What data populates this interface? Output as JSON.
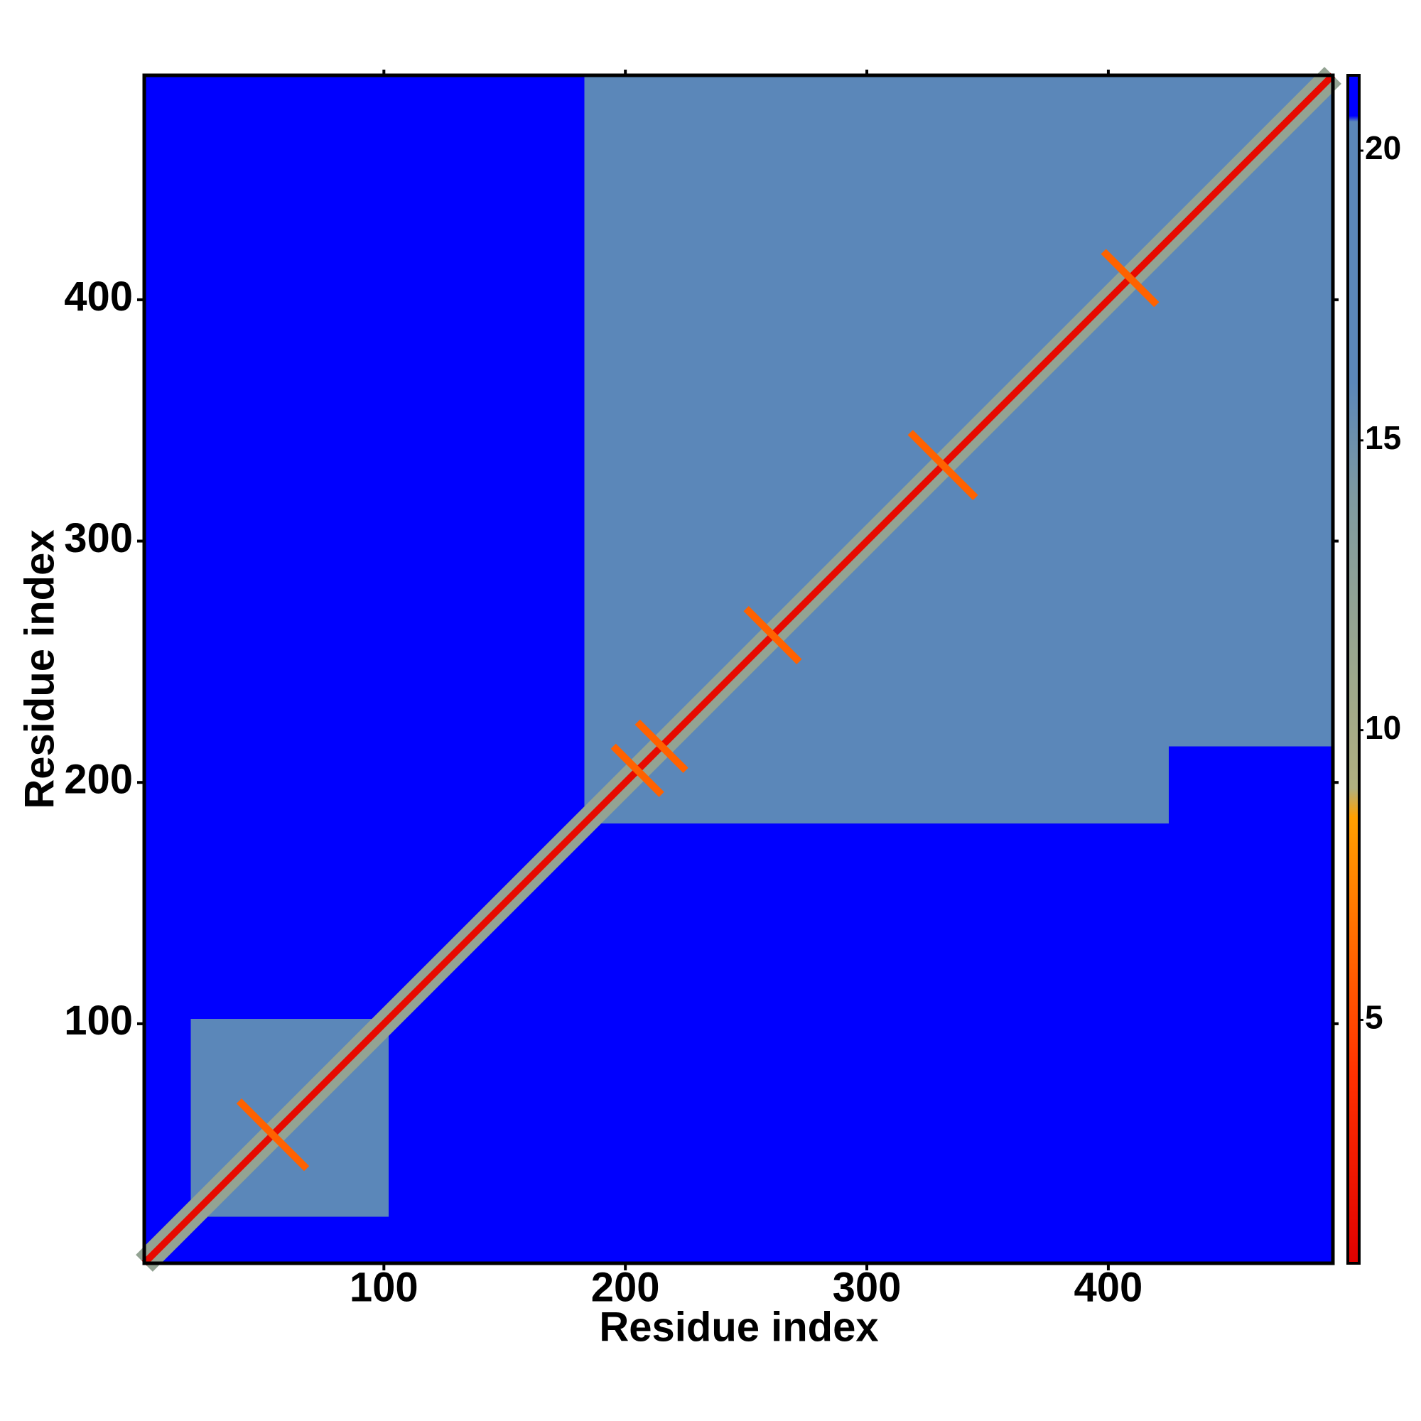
{
  "chart_data": {
    "type": "heatmap",
    "xlabel": "Residue index",
    "ylabel": "Residue index",
    "xlim": [
      0.75,
      493
    ],
    "ylim": [
      0.75,
      493
    ],
    "xticks": [
      100,
      200,
      300,
      400
    ],
    "yticks": [
      100,
      200,
      300,
      400
    ],
    "colorbar": {
      "clim": [
        0.8,
        21.3
      ],
      "ticks": [
        5,
        10,
        15,
        20
      ],
      "colormap": [
        {
          "value": 0.8,
          "color": "#e00000"
        },
        {
          "value": 4,
          "color": "#ff3000"
        },
        {
          "value": 8.5,
          "color": "#ffa000"
        },
        {
          "value": 9,
          "color": "#b0b080"
        },
        {
          "value": 14,
          "color": "#7f9aa0"
        },
        {
          "value": 16,
          "color": "#5b87b9"
        },
        {
          "value": 20.5,
          "color": "#5b87b9"
        },
        {
          "value": 20.6,
          "color": "#0000ff"
        },
        {
          "value": 21.3,
          "color": "#0000ff"
        }
      ]
    },
    "regions": [
      {
        "x": [
          0.75,
          493
        ],
        "y": [
          0.75,
          493
        ],
        "value": 21
      },
      {
        "x": [
          20,
          102
        ],
        "y": [
          20,
          102
        ],
        "value": 17
      },
      {
        "x": [
          183,
          493
        ],
        "y": [
          183,
          493
        ],
        "value": 17
      },
      {
        "x": [
          425,
          493
        ],
        "y": [
          183,
          215
        ],
        "value": 21
      }
    ],
    "diagonal": [
      {
        "range": [
          0.75,
          493
        ],
        "width": 14,
        "value": 12
      },
      {
        "range": [
          0.75,
          493
        ],
        "width": 4,
        "value": 1.5
      }
    ],
    "contacts": [
      {
        "x": [
          40,
          68
        ],
        "y": [
          68,
          40
        ],
        "value": 6
      },
      {
        "x": [
          195,
          215
        ],
        "y": [
          215,
          195
        ],
        "value": 6
      },
      {
        "x": [
          205,
          225
        ],
        "y": [
          225,
          205
        ],
        "value": 6
      },
      {
        "x": [
          250,
          272
        ],
        "y": [
          272,
          250
        ],
        "value": 6
      },
      {
        "x": [
          318,
          345
        ],
        "y": [
          345,
          318
        ],
        "value": 6
      },
      {
        "x": [
          398,
          420
        ],
        "y": [
          420,
          398
        ],
        "value": 6
      }
    ]
  }
}
